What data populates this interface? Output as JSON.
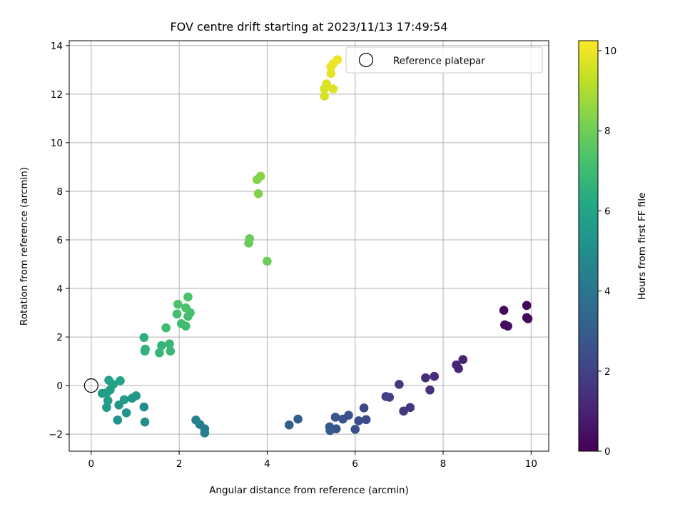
{
  "chart_data": {
    "type": "scatter",
    "title": "FOV centre drift starting at 2023/11/13 17:49:54",
    "xlabel": "Angular distance from reference (arcmin)",
    "ylabel": "Rotation from reference (arcmin)",
    "xlim": [
      -0.5,
      10.4
    ],
    "ylim": [
      -2.7,
      14.2
    ],
    "xticks": [
      0,
      2,
      4,
      6,
      8,
      10
    ],
    "xtick_labels": [
      "0",
      "2",
      "4",
      "6",
      "8",
      "10"
    ],
    "yticks": [
      -2,
      0,
      2,
      4,
      6,
      8,
      10,
      12,
      14
    ],
    "ytick_labels": [
      "−2",
      "0",
      "2",
      "4",
      "6",
      "8",
      "10",
      "12",
      "14"
    ],
    "grid": true,
    "legend": {
      "position": "top-right",
      "entries": [
        "Reference platepar"
      ]
    },
    "reference_point": {
      "x": 0,
      "y": 0
    },
    "colorbar": {
      "label": "Hours from first FF file",
      "range": [
        0,
        10.25
      ],
      "ticks": [
        0,
        2,
        4,
        6,
        8,
        10
      ],
      "tick_labels": [
        "0",
        "2",
        "4",
        "6",
        "8",
        "10"
      ],
      "colormap": "viridis"
    },
    "points": [
      {
        "x": 9.9,
        "y": 3.3,
        "c": 0.1
      },
      {
        "x": 9.9,
        "y": 2.8,
        "c": 0.15
      },
      {
        "x": 9.93,
        "y": 2.75,
        "c": 0.2
      },
      {
        "x": 9.38,
        "y": 3.1,
        "c": 0.25
      },
      {
        "x": 9.4,
        "y": 2.5,
        "c": 0.3
      },
      {
        "x": 9.47,
        "y": 2.45,
        "c": 0.35
      },
      {
        "x": 8.45,
        "y": 1.07,
        "c": 1.0
      },
      {
        "x": 8.3,
        "y": 0.85,
        "c": 1.05
      },
      {
        "x": 8.35,
        "y": 0.7,
        "c": 1.1
      },
      {
        "x": 7.6,
        "y": 0.32,
        "c": 1.3
      },
      {
        "x": 7.8,
        "y": 0.38,
        "c": 1.35
      },
      {
        "x": 7.7,
        "y": -0.18,
        "c": 1.4
      },
      {
        "x": 7.25,
        "y": -0.9,
        "c": 1.6
      },
      {
        "x": 7.1,
        "y": -1.05,
        "c": 1.65
      },
      {
        "x": 7.0,
        "y": 0.05,
        "c": 1.7
      },
      {
        "x": 6.7,
        "y": -0.45,
        "c": 1.9
      },
      {
        "x": 6.78,
        "y": -0.48,
        "c": 1.95
      },
      {
        "x": 6.2,
        "y": -0.92,
        "c": 2.3
      },
      {
        "x": 6.25,
        "y": -1.4,
        "c": 2.35
      },
      {
        "x": 6.08,
        "y": -1.45,
        "c": 2.4
      },
      {
        "x": 6.0,
        "y": -1.8,
        "c": 2.5
      },
      {
        "x": 5.85,
        "y": -1.22,
        "c": 2.6
      },
      {
        "x": 5.72,
        "y": -1.38,
        "c": 2.65
      },
      {
        "x": 5.55,
        "y": -1.3,
        "c": 2.7
      },
      {
        "x": 5.57,
        "y": -1.78,
        "c": 2.75
      },
      {
        "x": 5.42,
        "y": -1.7,
        "c": 2.8
      },
      {
        "x": 5.43,
        "y": -1.85,
        "c": 2.85
      },
      {
        "x": 4.7,
        "y": -1.38,
        "c": 3.0
      },
      {
        "x": 4.5,
        "y": -1.62,
        "c": 3.05
      },
      {
        "x": 2.58,
        "y": -1.95,
        "c": 4.3
      },
      {
        "x": 2.58,
        "y": -1.78,
        "c": 4.35
      },
      {
        "x": 2.47,
        "y": -1.6,
        "c": 4.4
      },
      {
        "x": 2.38,
        "y": -1.42,
        "c": 4.45
      },
      {
        "x": 1.22,
        "y": -1.5,
        "c": 5.0
      },
      {
        "x": 1.2,
        "y": -0.88,
        "c": 5.05
      },
      {
        "x": 0.6,
        "y": -1.42,
        "c": 5.3
      },
      {
        "x": 0.8,
        "y": -1.12,
        "c": 5.35
      },
      {
        "x": 0.63,
        "y": -0.8,
        "c": 5.4
      },
      {
        "x": 0.93,
        "y": -0.52,
        "c": 5.45
      },
      {
        "x": 1.02,
        "y": -0.42,
        "c": 5.5
      },
      {
        "x": 0.75,
        "y": -0.58,
        "c": 5.55
      },
      {
        "x": 0.35,
        "y": -0.9,
        "c": 5.6
      },
      {
        "x": 0.38,
        "y": -0.62,
        "c": 5.65
      },
      {
        "x": 0.25,
        "y": -0.32,
        "c": 5.7
      },
      {
        "x": 0.35,
        "y": -0.3,
        "c": 5.75
      },
      {
        "x": 0.43,
        "y": -0.18,
        "c": 5.8
      },
      {
        "x": 0.5,
        "y": 0.05,
        "c": 5.85
      },
      {
        "x": 0.4,
        "y": 0.22,
        "c": 5.9
      },
      {
        "x": 0.66,
        "y": 0.2,
        "c": 5.95
      },
      {
        "x": 1.2,
        "y": 1.98,
        "c": 6.5
      },
      {
        "x": 1.23,
        "y": 1.5,
        "c": 6.55
      },
      {
        "x": 1.22,
        "y": 1.42,
        "c": 6.6
      },
      {
        "x": 1.6,
        "y": 1.65,
        "c": 6.7
      },
      {
        "x": 1.55,
        "y": 1.35,
        "c": 6.75
      },
      {
        "x": 1.78,
        "y": 1.72,
        "c": 6.8
      },
      {
        "x": 1.8,
        "y": 1.42,
        "c": 6.85
      },
      {
        "x": 1.7,
        "y": 2.38,
        "c": 6.95
      },
      {
        "x": 2.05,
        "y": 2.55,
        "c": 7.0
      },
      {
        "x": 2.15,
        "y": 2.45,
        "c": 7.05
      },
      {
        "x": 1.95,
        "y": 2.95,
        "c": 7.1
      },
      {
        "x": 2.2,
        "y": 2.85,
        "c": 7.15
      },
      {
        "x": 2.25,
        "y": 3.0,
        "c": 7.2
      },
      {
        "x": 2.15,
        "y": 3.2,
        "c": 7.25
      },
      {
        "x": 1.97,
        "y": 3.35,
        "c": 7.3
      },
      {
        "x": 2.2,
        "y": 3.65,
        "c": 7.35
      },
      {
        "x": 3.58,
        "y": 5.87,
        "c": 7.8
      },
      {
        "x": 3.6,
        "y": 6.05,
        "c": 7.85
      },
      {
        "x": 4.0,
        "y": 5.12,
        "c": 7.95
      },
      {
        "x": 3.8,
        "y": 7.9,
        "c": 8.3
      },
      {
        "x": 3.77,
        "y": 8.48,
        "c": 8.35
      },
      {
        "x": 3.85,
        "y": 8.62,
        "c": 8.4
      },
      {
        "x": 5.3,
        "y": 11.92,
        "c": 9.6
      },
      {
        "x": 5.3,
        "y": 12.22,
        "c": 9.65
      },
      {
        "x": 5.35,
        "y": 12.42,
        "c": 9.7
      },
      {
        "x": 5.5,
        "y": 12.22,
        "c": 9.75
      },
      {
        "x": 5.45,
        "y": 12.85,
        "c": 9.85
      },
      {
        "x": 5.45,
        "y": 13.12,
        "c": 9.9
      },
      {
        "x": 5.5,
        "y": 13.25,
        "c": 9.95
      },
      {
        "x": 5.6,
        "y": 13.42,
        "c": 10.0
      }
    ]
  }
}
